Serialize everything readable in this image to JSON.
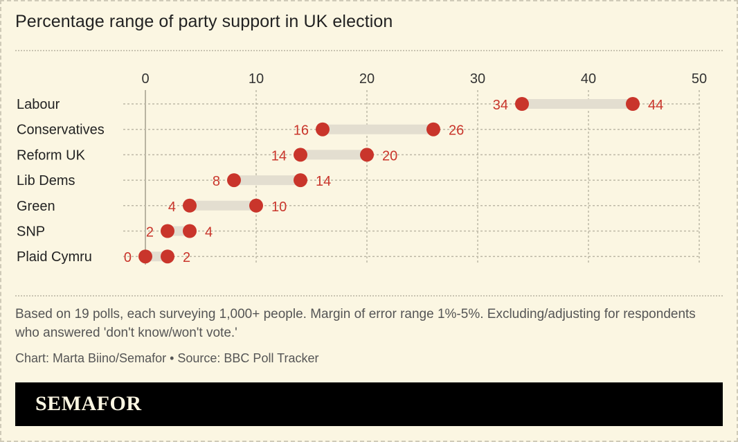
{
  "title": "Percentage range of party support in UK election",
  "chart_data": {
    "type": "range-dot",
    "title": "Percentage range of party support in UK election",
    "xlim": [
      0,
      50
    ],
    "xticks": [
      0,
      10,
      20,
      30,
      40,
      50
    ],
    "categories": [
      "Labour",
      "Conservatives",
      "Reform UK",
      "Lib Dems",
      "Green",
      "SNP",
      "Plaid Cymru"
    ],
    "series": [
      {
        "name": "low",
        "values": [
          34,
          16,
          14,
          8,
          4,
          2,
          0
        ]
      },
      {
        "name": "high",
        "values": [
          44,
          26,
          20,
          14,
          10,
          4,
          2
        ]
      }
    ],
    "dot_color": "#c9352b",
    "range_color": "#e3ded0"
  },
  "footnote": "Based on 19 polls, each surveying 1,000+ people. Margin of error range 1%-5%. Excluding/adjusting for respondents who answered 'don't know/won't vote.'",
  "credit": "Chart: Marta Biino/Semafor • Source: BBC Poll Tracker",
  "brand": "SEMAFOR"
}
